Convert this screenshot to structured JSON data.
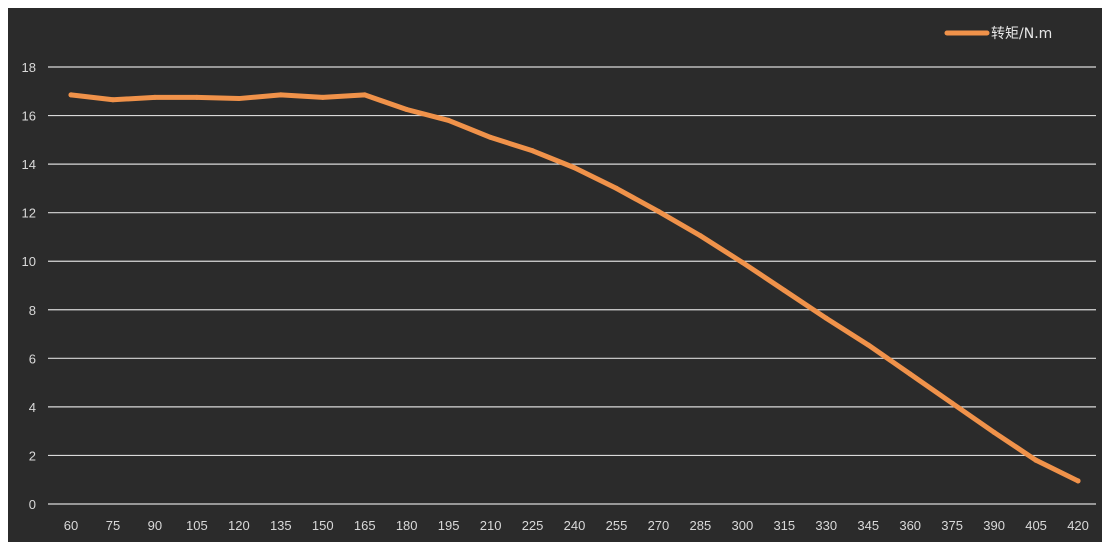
{
  "chart_data": {
    "type": "line",
    "title": "",
    "xlabel": "",
    "ylabel": "",
    "x": [
      60,
      75,
      90,
      105,
      120,
      135,
      150,
      165,
      180,
      195,
      210,
      225,
      240,
      255,
      270,
      285,
      300,
      315,
      330,
      345,
      360,
      375,
      390,
      405,
      420
    ],
    "series": [
      {
        "name": "转矩/N.m",
        "color": "#f0924a",
        "values": [
          16.85,
          16.65,
          16.75,
          16.75,
          16.7,
          16.85,
          16.75,
          16.85,
          16.25,
          15.8,
          15.1,
          14.55,
          13.85,
          13.0,
          12.05,
          11.05,
          9.95,
          8.8,
          7.65,
          6.55,
          5.35,
          4.15,
          2.95,
          1.8,
          0.95
        ]
      }
    ],
    "ylim": [
      0,
      18
    ],
    "yticks": [
      0,
      2,
      4,
      6,
      8,
      10,
      12,
      14,
      16,
      18
    ],
    "grid": true,
    "legend_position": "top-right",
    "background_color": "#2b2b2b",
    "gridline_color": "#d9d9d9"
  }
}
